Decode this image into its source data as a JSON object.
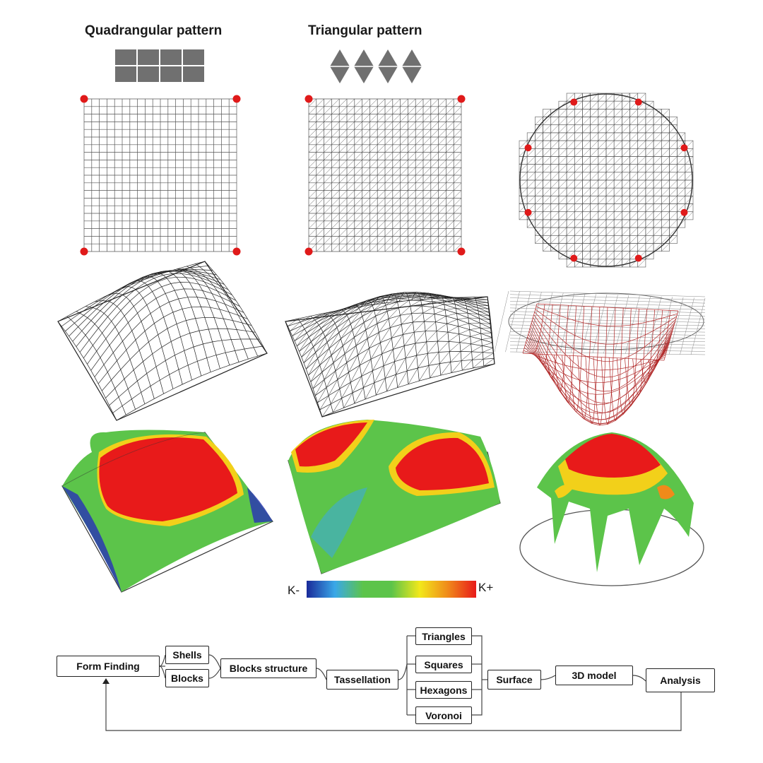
{
  "headers": {
    "quadrangular": "Quadrangular pattern",
    "triangular": "Triangular pattern"
  },
  "colorbar": {
    "min_label": "K-",
    "max_label": "K+",
    "colors": [
      "#1a2a9a",
      "#3aa8e8",
      "#5cc44a",
      "#5cc44a",
      "#f2e81a",
      "#f08a1a",
      "#e81a1a"
    ]
  },
  "flowchart": {
    "form_finding": "Form Finding",
    "shells": "Shells",
    "blocks": "Blocks",
    "blocks_structure": "Blocks structure",
    "tassellation": "Tassellation",
    "triangles": "Triangles",
    "squares": "Squares",
    "hexagons": "Hexagons",
    "voronoi": "Voronoi",
    "surface": "Surface",
    "model_3d": "3D model",
    "analysis": "Analysis"
  },
  "colors": {
    "grid_line": "#555555",
    "support_point": "#e01a1a",
    "dome_mesh": "#b02828",
    "curvature_high": "#e81a1a",
    "curvature_mid": "#5cc44a",
    "curvature_low": "#2a3ab0"
  }
}
